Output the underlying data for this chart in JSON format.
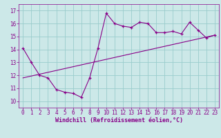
{
  "xlabel": "Windchill (Refroidissement éolien,°C)",
  "bg_color": "#cce8e8",
  "line_color": "#880088",
  "grid_color": "#99cccc",
  "xlim": [
    -0.5,
    23.5
  ],
  "ylim": [
    9.5,
    17.5
  ],
  "yticks": [
    10,
    11,
    12,
    13,
    14,
    15,
    16,
    17
  ],
  "xticks": [
    0,
    1,
    2,
    3,
    4,
    5,
    6,
    7,
    8,
    9,
    10,
    11,
    12,
    13,
    14,
    15,
    16,
    17,
    18,
    19,
    20,
    21,
    22,
    23
  ],
  "series1_x": [
    0,
    1,
    2,
    3,
    4,
    5,
    6,
    7,
    8,
    9,
    10,
    11,
    12,
    13,
    14,
    15,
    16,
    17,
    18,
    19,
    20,
    21,
    22,
    23
  ],
  "series1_y": [
    14.1,
    13.0,
    12.0,
    11.8,
    10.9,
    10.7,
    10.6,
    10.3,
    11.8,
    14.1,
    16.8,
    16.0,
    15.8,
    15.7,
    16.1,
    16.0,
    15.3,
    15.3,
    15.4,
    15.2,
    16.1,
    15.5,
    14.9,
    15.1
  ],
  "series2_x": [
    0,
    23
  ],
  "series2_y": [
    11.8,
    15.1
  ],
  "tick_fontsize": 5.5,
  "label_fontsize": 6.0
}
